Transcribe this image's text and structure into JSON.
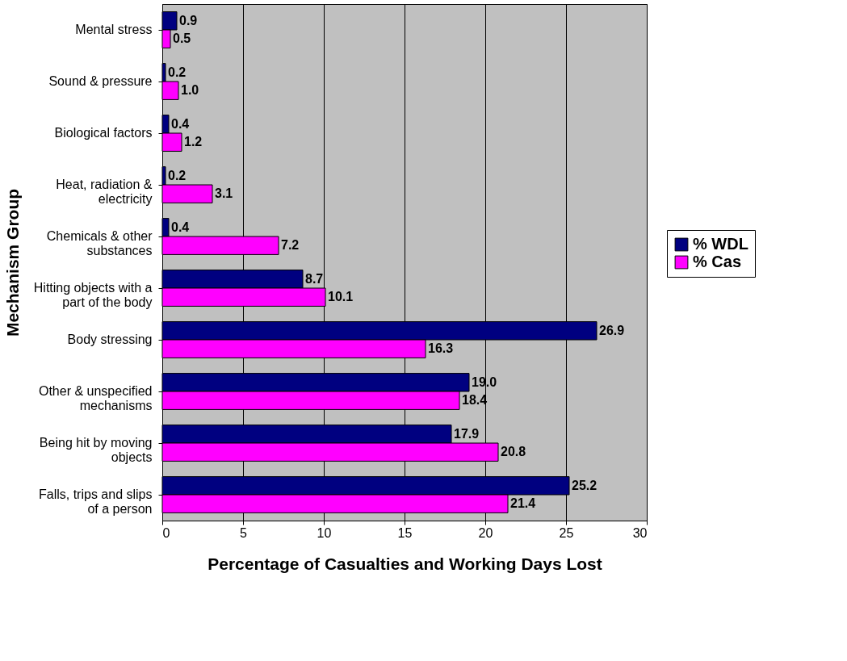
{
  "chart_data": {
    "type": "bar",
    "orientation": "horizontal",
    "categories": [
      "Mental stress",
      "Sound & pressure",
      "Biological factors",
      "Heat, radiation & electricity",
      "Chemicals & other substances",
      "Hitting objects with a part of the body",
      "Body stressing",
      "Other & unspecified mechanisms",
      "Being hit by moving objects",
      "Falls, trips and slips of a person"
    ],
    "series": [
      {
        "name": "% WDL",
        "color": "#000080",
        "values": [
          0.9,
          0.2,
          0.4,
          0.2,
          0.4,
          8.7,
          26.9,
          19.0,
          17.9,
          25.2
        ],
        "value_labels": [
          "0.9",
          "0.2",
          "0.4",
          "0.2",
          "0.4",
          "8.7",
          "26.9",
          "19.0",
          "17.9",
          "25.2"
        ]
      },
      {
        "name": "% Cas",
        "color": "#ff00ff",
        "values": [
          0.5,
          1.0,
          1.2,
          3.1,
          7.2,
          10.1,
          16.3,
          18.4,
          20.8,
          21.4
        ],
        "value_labels": [
          "0.5",
          "1.0",
          "1.2",
          "3.1",
          "7.2",
          "10.1",
          "16.3",
          "18.4",
          "20.8",
          "21.4"
        ]
      }
    ],
    "xlim": [
      0,
      30
    ],
    "xticks": [
      0,
      5,
      10,
      15,
      20,
      25,
      30
    ],
    "xlabel": "Percentage of Casualties and Working Days Lost",
    "ylabel": "Mechanism Group",
    "grid": "x",
    "legend": "right"
  }
}
